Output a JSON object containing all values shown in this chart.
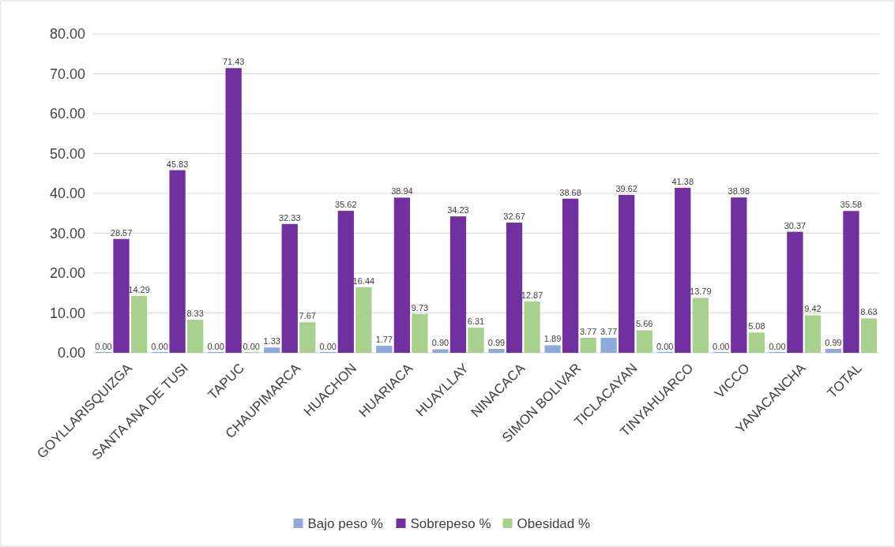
{
  "chart_data": {
    "type": "bar",
    "categories": [
      "GOYLLARISQUIZGA",
      "SANTA ANA DE TUSI",
      "TAPUC",
      "CHAUPIMARCA",
      "HUACHON",
      "HUARIACA",
      "HUAYLLAY",
      "NINACACA",
      "SIMON BOLIVAR",
      "TICLACAYAN",
      "TINYAHUARCO",
      "VICCO",
      "YANACANCHA",
      "TOTAL"
    ],
    "series": [
      {
        "name": "Bajo peso %",
        "color": "#8eaadb",
        "values": [
          0,
          0,
          0,
          1.33,
          0,
          1.77,
          0.9,
          0.99,
          1.89,
          3.77,
          0,
          0,
          0,
          0.99
        ],
        "value_labels": [
          "0.00",
          "0.00",
          "0.00",
          "1.33",
          "0.00",
          "1.77",
          "0.90",
          "0.99",
          "1.89",
          "3.77",
          "0.00",
          "0.00",
          "0.00",
          "0.99"
        ]
      },
      {
        "name": "Sobrepeso %",
        "color": "#7030a0",
        "values": [
          28.57,
          45.83,
          71.43,
          32.33,
          35.62,
          38.94,
          34.23,
          32.67,
          38.68,
          39.62,
          41.38,
          38.98,
          30.37,
          35.58
        ],
        "value_labels": [
          "28.57",
          "45.83",
          "71.43",
          "32.33",
          "35.62",
          "38.94",
          "34.23",
          "32.67",
          "38.68",
          "39.62",
          "41.38",
          "38.98",
          "30.37",
          "35.58"
        ]
      },
      {
        "name": "Obesidad %",
        "color": "#a9d18e",
        "values": [
          14.29,
          8.33,
          0,
          7.67,
          16.44,
          9.73,
          6.31,
          12.87,
          3.77,
          5.66,
          13.79,
          5.08,
          9.42,
          8.63
        ],
        "value_labels": [
          "14.29",
          "8.33",
          "0.00",
          "7.67",
          "16.44",
          "9.73",
          "6.31",
          "12.87",
          "3.77",
          "5.66",
          "13.79",
          "5.08",
          "9.42",
          "8.63"
        ]
      }
    ],
    "ylim": [
      0,
      80
    ],
    "yticks": [
      {
        "value": 0,
        "label": "0.00"
      },
      {
        "value": 10,
        "label": "10.00"
      },
      {
        "value": 20,
        "label": "20.00"
      },
      {
        "value": 30,
        "label": "30.00"
      },
      {
        "value": 40,
        "label": "40.00"
      },
      {
        "value": 50,
        "label": "50.00"
      },
      {
        "value": 60,
        "label": "60.00"
      },
      {
        "value": 70,
        "label": "70.00"
      },
      {
        "value": 80,
        "label": "80.00"
      }
    ],
    "grid": "y",
    "legend": "bottom"
  }
}
